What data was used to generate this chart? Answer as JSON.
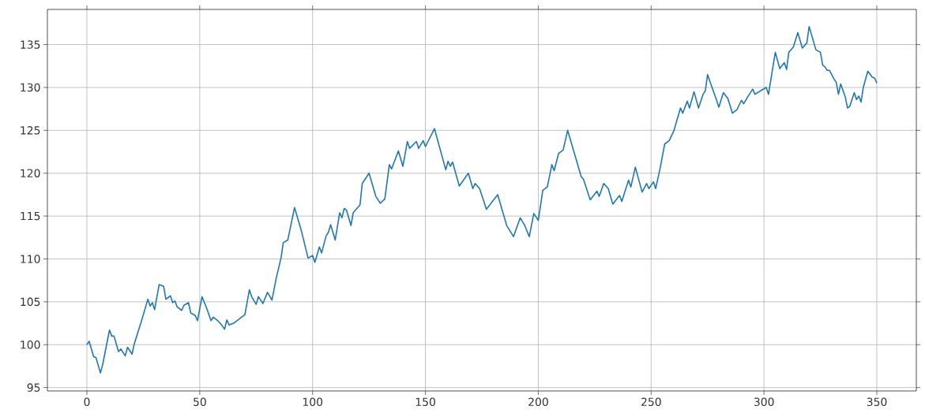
{
  "chart_data": {
    "type": "line",
    "xlim": [
      -17.5,
      367.5
    ],
    "ylim": [
      94.6,
      139.1
    ],
    "xticks": [
      0,
      50,
      100,
      150,
      200,
      250,
      300,
      350
    ],
    "yticks": [
      95,
      100,
      105,
      110,
      115,
      120,
      125,
      130,
      135
    ],
    "grid": true,
    "x": [
      0,
      1,
      3,
      4,
      6,
      7,
      10,
      11,
      12,
      14,
      15,
      17,
      18,
      20,
      21,
      23,
      24,
      27,
      28,
      29,
      30,
      32,
      34,
      35,
      37,
      38,
      39,
      40,
      42,
      43,
      45,
      46,
      48,
      49,
      51,
      53,
      55,
      56,
      58,
      60,
      61,
      62,
      63,
      65,
      70,
      72,
      73,
      75,
      76,
      78,
      80,
      82,
      84,
      86,
      87,
      89,
      92,
      95,
      98,
      100,
      101,
      103,
      104,
      106,
      107,
      108,
      110,
      112,
      113,
      114,
      115,
      117,
      118,
      121,
      122,
      125,
      128,
      130,
      132,
      134,
      135,
      138,
      140,
      142,
      143,
      146,
      147,
      149,
      150,
      154,
      159,
      160,
      161,
      162,
      165,
      169,
      171,
      172,
      174,
      177,
      182,
      186,
      189,
      192,
      194,
      196,
      198,
      200,
      202,
      204,
      206,
      207,
      209,
      211,
      213,
      219,
      220,
      223,
      226,
      227,
      229,
      231,
      233,
      236,
      237,
      240,
      241,
      243,
      246,
      248,
      249,
      251,
      252,
      254,
      256,
      258,
      260,
      263,
      264,
      266,
      267,
      269,
      271,
      273,
      274,
      275,
      279,
      280,
      282,
      284,
      286,
      288,
      290,
      291,
      293,
      295,
      296,
      299,
      301,
      302,
      305,
      307,
      309,
      310,
      311,
      313,
      315,
      317,
      319,
      320,
      323,
      325,
      326,
      327,
      328,
      329,
      331,
      332,
      333,
      334,
      336,
      337,
      338,
      340,
      341,
      342,
      343,
      344,
      346,
      348,
      349,
      350
    ],
    "series": [
      {
        "color": "#1f77b4",
        "values": [
          100.0,
          100.4,
          98.6,
          98.5,
          96.7,
          97.7,
          101.7,
          101.0,
          101.0,
          99.2,
          99.5,
          98.7,
          99.7,
          98.9,
          100.1,
          101.8,
          102.6,
          105.3,
          104.5,
          104.9,
          104.1,
          107.0,
          106.8,
          105.3,
          105.7,
          104.9,
          105.1,
          104.4,
          104.0,
          104.6,
          104.9,
          103.7,
          103.4,
          102.8,
          105.6,
          104.3,
          102.8,
          103.2,
          102.8,
          102.2,
          101.8,
          102.9,
          102.3,
          102.5,
          103.5,
          106.4,
          105.6,
          104.7,
          105.6,
          104.8,
          106.1,
          105.2,
          107.9,
          110.1,
          111.9,
          112.2,
          116.0,
          113.3,
          110.1,
          110.4,
          109.6,
          111.4,
          110.7,
          112.7,
          113.1,
          114.0,
          112.2,
          115.4,
          114.8,
          115.9,
          115.7,
          113.9,
          115.4,
          116.3,
          118.8,
          120.0,
          117.3,
          116.5,
          117.0,
          121.0,
          120.5,
          122.6,
          120.8,
          123.7,
          122.9,
          123.7,
          122.9,
          123.8,
          123.1,
          125.2,
          120.4,
          121.4,
          120.8,
          121.3,
          118.5,
          120.0,
          118.2,
          118.8,
          118.2,
          115.8,
          117.5,
          113.9,
          112.6,
          114.8,
          113.9,
          112.6,
          115.3,
          114.5,
          118.0,
          118.4,
          121.0,
          120.3,
          122.3,
          122.7,
          125.0,
          119.6,
          119.3,
          116.9,
          117.9,
          117.3,
          118.8,
          118.2,
          116.4,
          117.4,
          116.7,
          119.2,
          118.4,
          120.7,
          117.8,
          118.8,
          118.2,
          119.0,
          118.2,
          120.6,
          123.4,
          123.8,
          124.9,
          127.6,
          127.0,
          128.4,
          127.6,
          129.5,
          127.6,
          129.2,
          129.6,
          131.5,
          128.5,
          127.7,
          129.4,
          128.7,
          127.0,
          127.4,
          128.5,
          128.1,
          129.0,
          129.8,
          129.2,
          129.7,
          130.0,
          129.2,
          134.1,
          132.2,
          132.9,
          132.1,
          134.1,
          134.7,
          136.4,
          134.6,
          135.2,
          137.1,
          134.4,
          134.1,
          132.6,
          132.4,
          132.0,
          132.0,
          131.0,
          130.6,
          129.2,
          130.4,
          128.9,
          127.6,
          127.8,
          129.4,
          128.6,
          129.0,
          128.3,
          130.0,
          131.9,
          131.2,
          131.1,
          130.5
        ]
      }
    ]
  }
}
